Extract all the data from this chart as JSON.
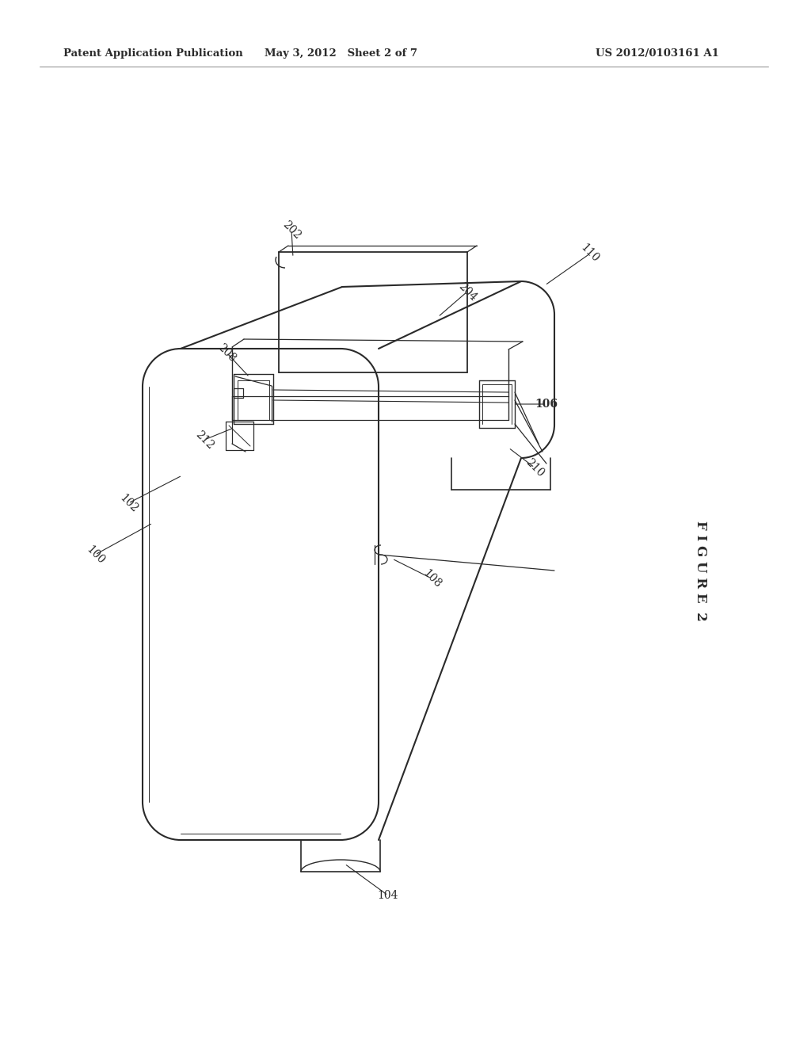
{
  "bg_color": "#ffffff",
  "line_color": "#2a2a2a",
  "header_left": "Patent Application Publication",
  "header_mid": "May 3, 2012   Sheet 2 of 7",
  "header_right": "US 2012/0103161 A1",
  "figure_label": "F I G U R E  2"
}
